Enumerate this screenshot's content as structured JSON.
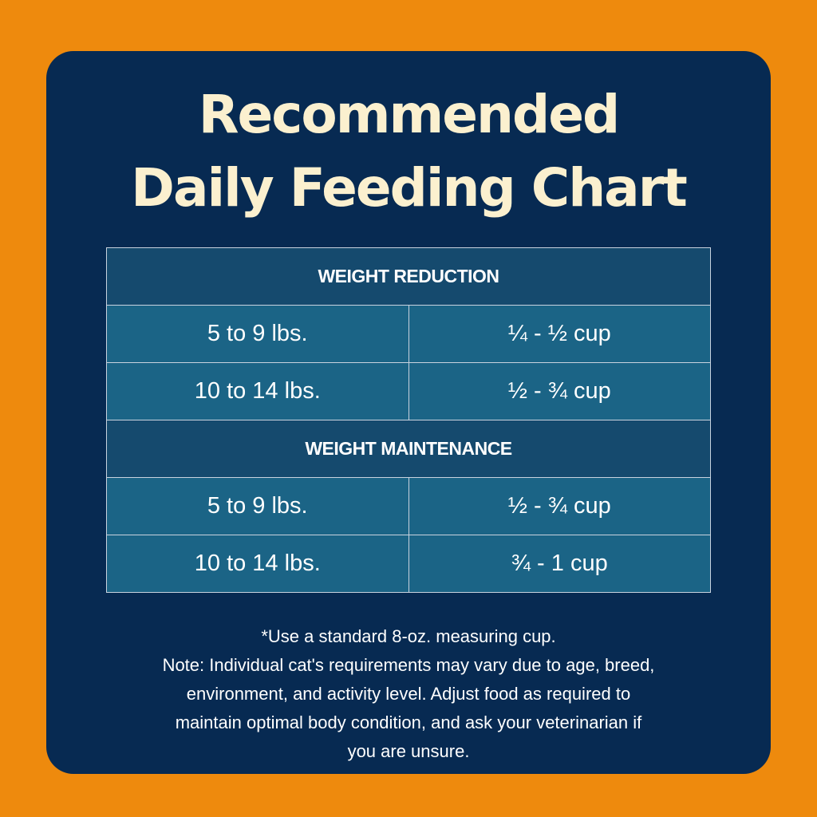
{
  "title": {
    "line1": "Recommended",
    "line2": "Daily Feeding Chart"
  },
  "colors": {
    "background": "#EE8A0D",
    "card": "#072A52",
    "title_text": "#FBF0CF",
    "section_header_bg": "#154A6E",
    "data_row_bg": "#1B6486",
    "grid_lines": "#C9D3DF"
  },
  "table": {
    "sections": [
      {
        "header": "WEIGHT REDUCTION",
        "rows": [
          {
            "weight": "5 to 9 lbs.",
            "amount": "¼ - ½ cup"
          },
          {
            "weight": "10 to 14 lbs.",
            "amount": "½ - ¾ cup"
          }
        ]
      },
      {
        "header": "WEIGHT MAINTENANCE",
        "rows": [
          {
            "weight": "5 to 9 lbs.",
            "amount": "½ - ¾ cup"
          },
          {
            "weight": "10 to 14 lbs.",
            "amount": "¾ - 1 cup"
          }
        ]
      }
    ]
  },
  "notes": {
    "lines": [
      "*Use a standard 8-oz. measuring cup.",
      "Note: Individual cat's requirements may vary due to age, breed,",
      "environment, and activity level. Adjust food as required to",
      "maintain optimal body condition, and ask your veterinarian if",
      "you are unsure."
    ]
  }
}
